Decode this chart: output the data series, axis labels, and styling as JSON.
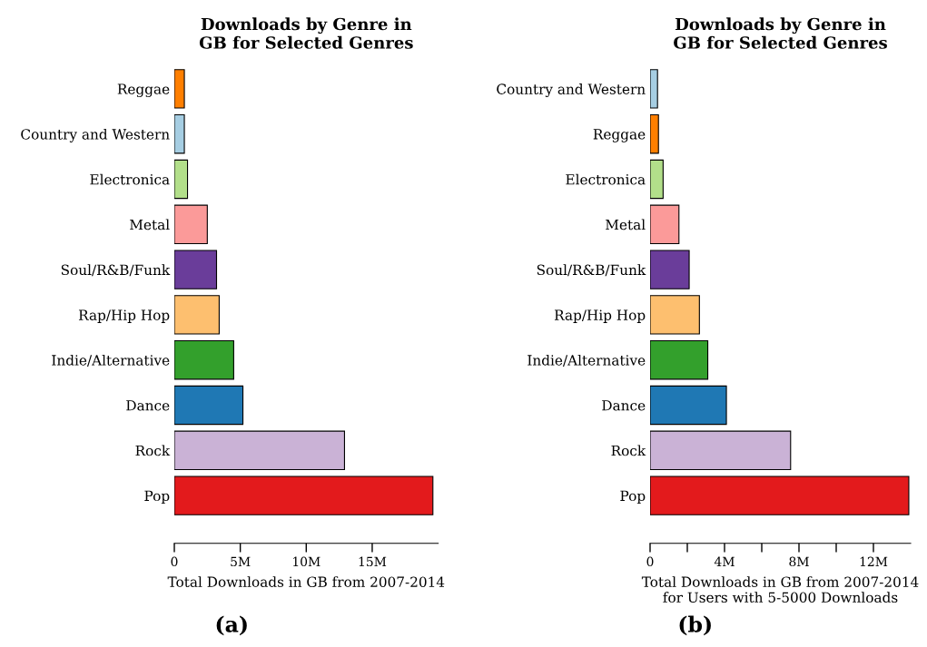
{
  "chart_data": [
    {
      "type": "bar",
      "orientation": "horizontal",
      "title": "Downloads by Genre in\nGB for Selected Genres",
      "xlabel": "Total Downloads in GB from 2007-2014",
      "annotations": [
        "(a)"
      ],
      "categories": [
        "Reggae",
        "Country and Western",
        "Electronica",
        "Metal",
        "Soul/R&B/Funk",
        "Rap/Hip Hop",
        "Indie/Alternative",
        "Dance",
        "Rock",
        "Pop"
      ],
      "values": [
        0.76,
        0.76,
        1.0,
        2.5,
        3.2,
        3.4,
        4.5,
        5.2,
        12.9,
        19.6
      ],
      "colors": [
        "#ff7f00",
        "#a6cee3",
        "#b2df8a",
        "#fb9a99",
        "#6a3d9a",
        "#fdbf6f",
        "#33a02c",
        "#1f78b4",
        "#cab2d6",
        "#e31a1c"
      ],
      "xlim": [
        0,
        20
      ],
      "xticks": [
        0,
        {
          "value": 5,
          "label": "5M"
        },
        {
          "value": 10,
          "label": "10M"
        },
        {
          "value": 15,
          "label": "15M"
        }
      ],
      "grid": false,
      "legend": false
    },
    {
      "type": "bar",
      "orientation": "horizontal",
      "title": "Downloads by Genre in\nGB for Selected Genres",
      "xlabel": "Total Downloads in GB from 2007-2014\nfor Users with 5-5000 Downloads",
      "annotations": [
        "(b)"
      ],
      "categories": [
        "Country and Western",
        "Reggae",
        "Electronica",
        "Metal",
        "Soul/R&B/Funk",
        "Rap/Hip Hop",
        "Indie/Alternative",
        "Dance",
        "Rock",
        "Pop"
      ],
      "values": [
        0.4,
        0.45,
        0.7,
        1.55,
        2.1,
        2.65,
        3.1,
        4.1,
        7.55,
        13.9
      ],
      "colors": [
        "#a6cee3",
        "#ff7f00",
        "#b2df8a",
        "#fb9a99",
        "#6a3d9a",
        "#fdbf6f",
        "#33a02c",
        "#1f78b4",
        "#cab2d6",
        "#e31a1c"
      ],
      "xlim": [
        0,
        14
      ],
      "xticks": [
        0,
        {
          "value": 2,
          "label": null
        },
        {
          "value": 4,
          "label": "4M"
        },
        {
          "value": 6,
          "label": null
        },
        {
          "value": 8,
          "label": "8M"
        },
        {
          "value": 10,
          "label": null
        },
        {
          "value": 12,
          "label": "12M"
        }
      ],
      "grid": false,
      "legend": false
    }
  ]
}
